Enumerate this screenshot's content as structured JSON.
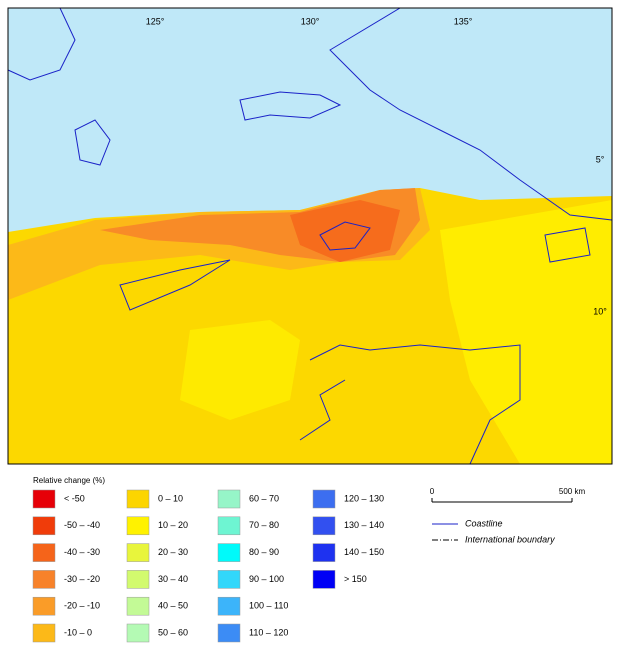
{
  "map": {
    "lon_labels": [
      "125°",
      "130°",
      "135°"
    ],
    "lat_labels": [
      "5°",
      "10°"
    ],
    "legend": {
      "title": "Relative change (%)",
      "items": [
        {
          "label": "< -50",
          "color": "#e60008"
        },
        {
          "label": "-50 – -40",
          "color": "#f03c0a"
        },
        {
          "label": "-40 – -30",
          "color": "#f5641a"
        },
        {
          "label": "-30 – -20",
          "color": "#f7822a"
        },
        {
          "label": "-20 – -10",
          "color": "#fa9c28"
        },
        {
          "label": "-10 – 0",
          "color": "#fcb918"
        },
        {
          "label": "0 – 10",
          "color": "#fcd500"
        },
        {
          "label": "10 – 20",
          "color": "#fff200"
        },
        {
          "label": "20 – 30",
          "color": "#e8f53c"
        },
        {
          "label": "30 – 40",
          "color": "#d2fa6e"
        },
        {
          "label": "40 – 50",
          "color": "#c3fa96"
        },
        {
          "label": "50 – 60",
          "color": "#b4fab4"
        },
        {
          "label": "60 – 70",
          "color": "#96f5c8"
        },
        {
          "label": "70 – 80",
          "color": "#6ef5d2"
        },
        {
          "label": "80 – 90",
          "color": "#00fafa"
        },
        {
          "label": "90 – 100",
          "color": "#32d7fa"
        },
        {
          "label": "100 – 110",
          "color": "#3cb4fa"
        },
        {
          "label": "110 – 120",
          "color": "#3c8cf5"
        },
        {
          "label": "120 – 130",
          "color": "#3c6ef0"
        },
        {
          "label": "130 – 140",
          "color": "#3250f0"
        },
        {
          "label": "140 – 150",
          "color": "#1e32f0"
        },
        {
          "label": "> 150",
          "color": "#0000f5"
        }
      ]
    },
    "scale_bar": {
      "start": "0",
      "end": "500 km"
    },
    "key": {
      "coastline": "Coastline",
      "boundary": "International boundary"
    }
  }
}
